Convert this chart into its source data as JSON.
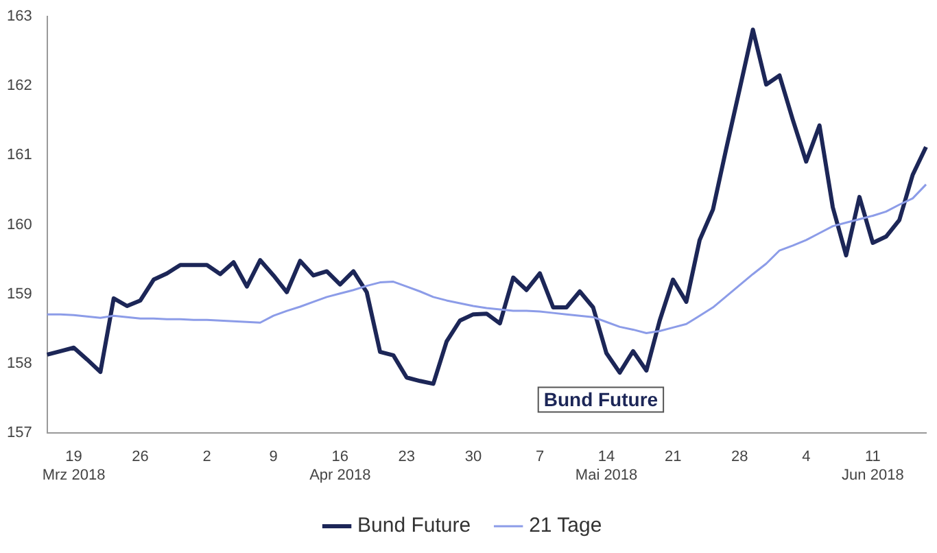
{
  "chart_data": {
    "type": "line",
    "categories": [
      null,
      null,
      "19\nMrz 2018",
      null,
      null,
      null,
      null,
      "26",
      null,
      null,
      null,
      null,
      "2",
      null,
      null,
      null,
      null,
      "9",
      null,
      null,
      null,
      null,
      "16\nApr 2018",
      null,
      null,
      null,
      null,
      "23",
      null,
      null,
      null,
      null,
      "30",
      null,
      null,
      null,
      null,
      "7",
      null,
      null,
      null,
      null,
      "14\nMai 2018",
      null,
      null,
      null,
      null,
      "21",
      null,
      null,
      null,
      null,
      "28",
      null,
      null,
      null,
      null,
      "4",
      null,
      null,
      null,
      null,
      "11\nJun 2018",
      null,
      null,
      null,
      null
    ],
    "series": [
      {
        "name": "Bund Future",
        "color": "#1c2657",
        "values": [
          158.13,
          158.18,
          158.23,
          158.06,
          157.88,
          158.94,
          158.83,
          158.91,
          159.21,
          159.3,
          159.42,
          159.42,
          159.42,
          159.29,
          159.46,
          159.11,
          159.49,
          159.27,
          159.03,
          159.48,
          159.27,
          159.33,
          159.14,
          159.33,
          159.03,
          158.17,
          158.12,
          157.8,
          157.75,
          157.71,
          158.32,
          158.62,
          158.71,
          158.72,
          158.58,
          159.24,
          159.06,
          159.3,
          158.81,
          158.81,
          159.04,
          158.81,
          158.15,
          157.87,
          158.18,
          157.9,
          158.62,
          159.21,
          158.89,
          159.78,
          160.22,
          161.1,
          161.95,
          162.81,
          162.02,
          162.15,
          161.51,
          160.91,
          161.43,
          160.25,
          159.56,
          160.4,
          159.74,
          159.83,
          160.07,
          160.72,
          161.12
        ]
      },
      {
        "name": "21 Tage",
        "color": "#8c9ce8",
        "values": [
          158.71,
          158.71,
          158.7,
          158.68,
          158.66,
          158.69,
          158.67,
          158.65,
          158.65,
          158.64,
          158.64,
          158.63,
          158.63,
          158.62,
          158.61,
          158.6,
          158.59,
          158.69,
          158.76,
          158.82,
          158.89,
          158.96,
          159.01,
          159.06,
          159.12,
          159.17,
          159.18,
          159.11,
          159.04,
          158.96,
          158.91,
          158.87,
          158.83,
          158.8,
          158.78,
          158.76,
          158.76,
          158.75,
          158.73,
          158.71,
          158.69,
          158.67,
          158.6,
          158.53,
          158.49,
          158.44,
          158.47,
          158.52,
          158.57,
          158.69,
          158.81,
          158.97,
          159.13,
          159.29,
          159.44,
          159.63,
          159.7,
          159.78,
          159.88,
          159.98,
          160.03,
          160.08,
          160.13,
          160.19,
          160.29,
          160.38,
          160.58
        ]
      }
    ],
    "ylim": [
      157,
      163
    ],
    "yticks": [
      157,
      158,
      159,
      160,
      161,
      162,
      163
    ],
    "grid": false,
    "legend": "bottom",
    "marker": "none",
    "line_style": "solid",
    "annotations": [
      "Bund Future"
    ]
  }
}
